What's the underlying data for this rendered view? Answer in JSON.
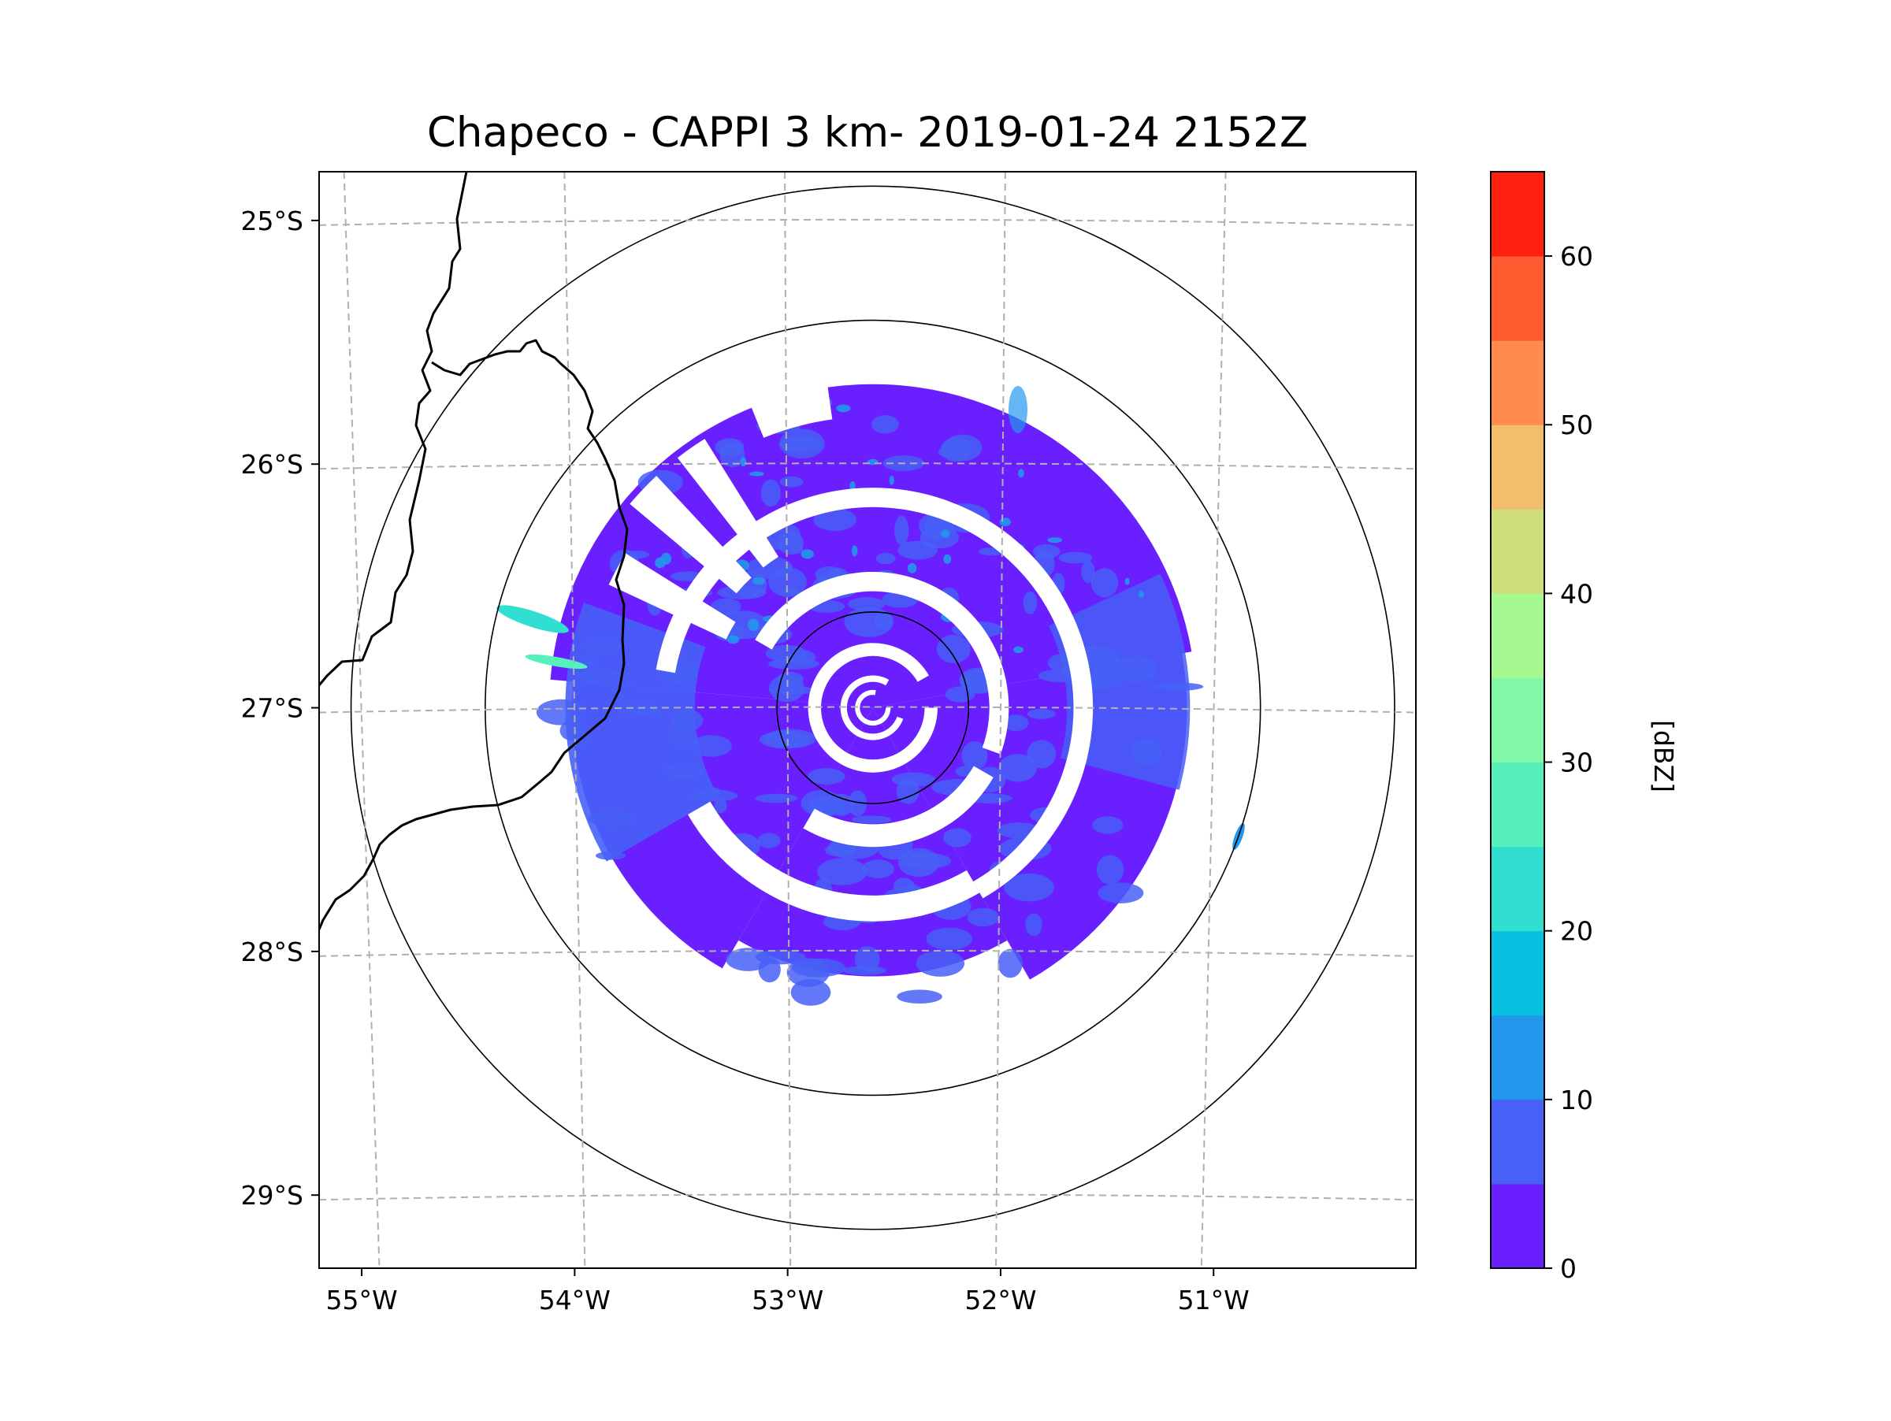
{
  "chart_data": {
    "type": "heatmap",
    "title": "Chapeco - CAPPI 3 km- 2019-01-24 2152Z",
    "x_ticks": [
      "55°W",
      "54°W",
      "53°W",
      "52°W",
      "51°W"
    ],
    "x_values": [
      -55,
      -54,
      -53,
      -52,
      -51
    ],
    "y_ticks": [
      "25°S",
      "26°S",
      "27°S",
      "28°S",
      "29°S"
    ],
    "y_values": [
      -25,
      -26,
      -27,
      -28,
      -29
    ],
    "xlim": [
      -55.2,
      -50.05
    ],
    "ylim": [
      -29.3,
      -24.8
    ],
    "radar_center": [
      -52.6,
      -27.0
    ],
    "range_rings_deg": [
      0.45,
      1.82,
      2.45
    ],
    "grid": true,
    "colorbar": {
      "label": "[dBZ]",
      "ticks": [
        "0",
        "10",
        "20",
        "30",
        "40",
        "50",
        "60"
      ],
      "tick_values": [
        0,
        10,
        20,
        30,
        40,
        50,
        60
      ],
      "range": [
        0,
        65
      ],
      "bins": [
        0,
        5,
        10,
        15,
        20,
        25,
        30,
        35,
        40,
        45,
        50,
        55,
        60,
        65
      ],
      "colors": [
        "#6a1fff",
        "#4760f7",
        "#2397ec",
        "#08c0e0",
        "#30dfd0",
        "#56f0bb",
        "#81f8a6",
        "#a6f891",
        "#cfdf7c",
        "#f3be6c",
        "#ff8c4e",
        "#ff5a30",
        "#ff2010"
      ]
    }
  }
}
